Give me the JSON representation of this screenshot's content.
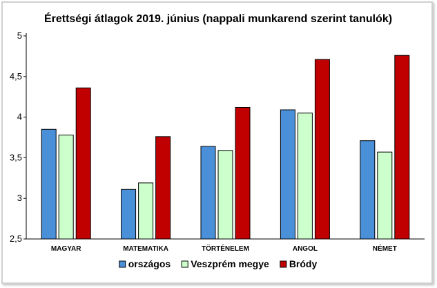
{
  "chart_data": {
    "type": "bar",
    "title": "Érettségi átlagok 2019. június  (nappali munkarend szerint tanulók)",
    "xlabel": "",
    "ylabel": "",
    "categories": [
      "MAGYAR",
      "MATEMATIKA",
      "TÖRTÉNELEM",
      "ANGOL",
      "NÉMET"
    ],
    "series": [
      {
        "name": "országos",
        "color": "#4a90d9",
        "values": [
          3.85,
          3.11,
          3.64,
          4.09,
          3.71
        ]
      },
      {
        "name": "Veszprém megye",
        "color": "#ccffcc",
        "values": [
          3.78,
          3.19,
          3.59,
          4.05,
          3.57
        ]
      },
      {
        "name": "Bródy",
        "color": "#c00000",
        "values": [
          4.36,
          3.76,
          4.12,
          4.71,
          4.76
        ]
      }
    ],
    "ylim": [
      2.5,
      5
    ],
    "yticks": [
      "2,5",
      "3",
      "3,5",
      "4",
      "4,5",
      "5"
    ],
    "ytick_values": [
      2.5,
      3,
      3.5,
      4,
      4.5,
      5
    ],
    "grid": false,
    "legend": "bottom-center"
  }
}
